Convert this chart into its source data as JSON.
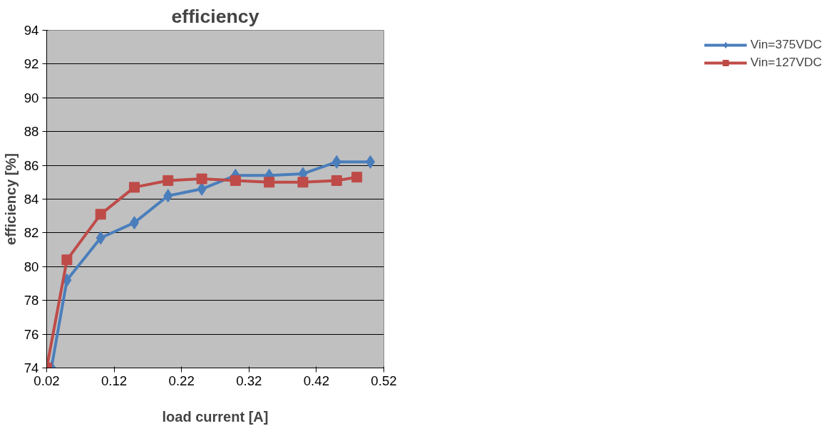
{
  "chart_data": {
    "type": "line",
    "title": "efficiency",
    "xlabel": "load current [A]",
    "ylabel": "efficiency [%]",
    "xlim": [
      0.02,
      0.52
    ],
    "xticks": [
      0.02,
      0.12,
      0.22,
      0.32,
      0.42,
      0.52
    ],
    "ylim": [
      74,
      94
    ],
    "yticks": [
      74,
      76,
      78,
      80,
      82,
      84,
      86,
      88,
      90,
      92,
      94
    ],
    "grid": "y",
    "legend": "right",
    "line_style": "solid",
    "series": [
      {
        "name": "Vin=375VDC",
        "color": "#4a7ebb",
        "marker": "diamond",
        "x": [
          0.027,
          0.05,
          0.1,
          0.15,
          0.2,
          0.25,
          0.3,
          0.35,
          0.4,
          0.45,
          0.5
        ],
        "values": [
          74.0,
          79.2,
          81.7,
          82.6,
          84.2,
          84.6,
          85.4,
          85.4,
          85.5,
          86.2,
          86.2
        ]
      },
      {
        "name": "Vin=127VDC",
        "color": "#be4b48",
        "marker": "square",
        "x": [
          0.02,
          0.05,
          0.1,
          0.15,
          0.2,
          0.25,
          0.3,
          0.35,
          0.4,
          0.45,
          0.48
        ],
        "values": [
          74.0,
          80.4,
          83.1,
          84.7,
          85.1,
          85.2,
          85.1,
          85.0,
          85.0,
          85.1,
          85.3
        ]
      }
    ]
  }
}
